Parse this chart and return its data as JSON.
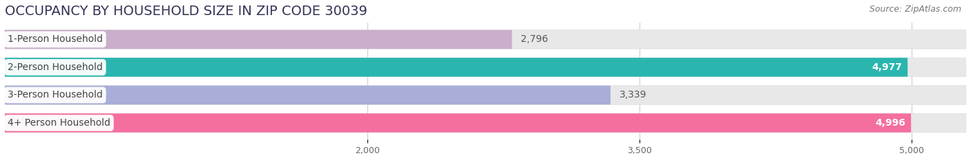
{
  "title": "OCCUPANCY BY HOUSEHOLD SIZE IN ZIP CODE 30039",
  "source": "Source: ZipAtlas.com",
  "categories": [
    "1-Person Household",
    "2-Person Household",
    "3-Person Household",
    "4+ Person Household"
  ],
  "values": [
    2796,
    4977,
    3339,
    4996
  ],
  "bar_colors": [
    "#caaeca",
    "#2ab5af",
    "#a8aed8",
    "#f46fa0"
  ],
  "xlim_min": 0,
  "xlim_max": 5300,
  "data_min": 0,
  "xticks": [
    2000,
    3500,
    5000
  ],
  "xtick_labels": [
    "2,000",
    "3,500",
    "5,000"
  ],
  "title_fontsize": 14,
  "source_fontsize": 9,
  "label_fontsize": 10,
  "value_fontsize": 10,
  "background_color": "#ffffff",
  "bar_track_color": "#e8e8e8",
  "figure_bg": "#ffffff",
  "label_text_color": "#444444",
  "value_color_dark": "#555555",
  "value_color_light": "#ffffff",
  "grid_color": "#cccccc",
  "title_color": "#333355"
}
